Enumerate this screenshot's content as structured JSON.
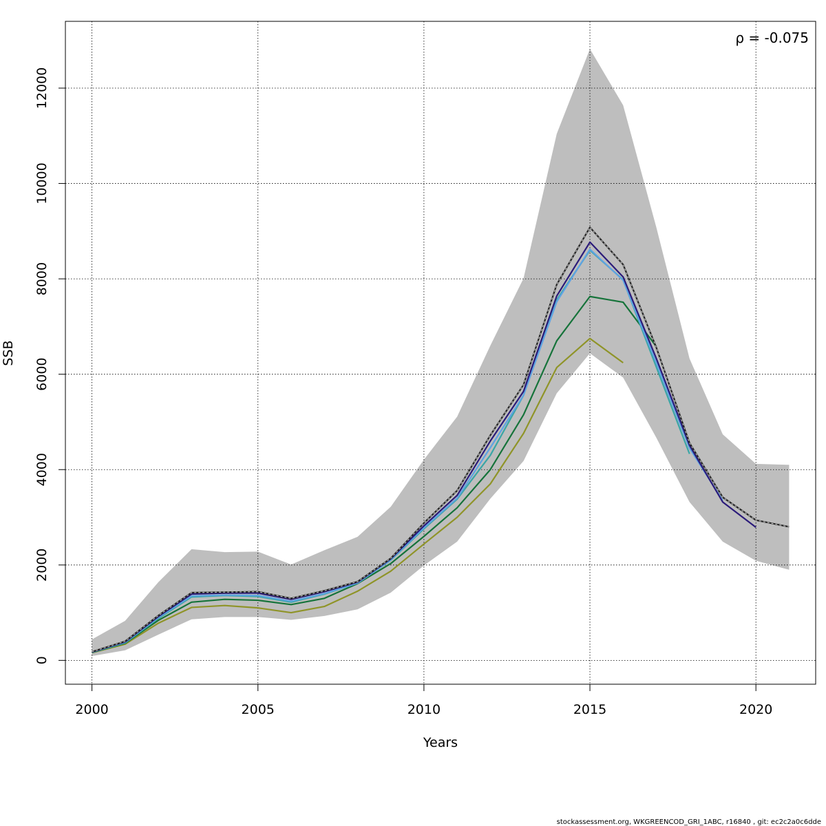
{
  "chart_data": {
    "type": "line",
    "title": "",
    "xlabel": "Years",
    "ylabel": "SSB",
    "xlim": [
      1999.2,
      2021.8
    ],
    "ylim": [
      -500,
      13400
    ],
    "x_ticks": [
      2000,
      2005,
      2010,
      2015,
      2020
    ],
    "y_ticks": [
      0,
      2000,
      4000,
      6000,
      8000,
      10000,
      12000
    ],
    "grid": true,
    "annotation": "ρ = -0.075",
    "footer": "stockassessment.org, WKGREENCOD_GRI_1ABC, r16840 , git: ec2c2a0c6dde",
    "band": {
      "x": [
        2000,
        2001,
        2002,
        2003,
        2004,
        2005,
        2006,
        2007,
        2008,
        2009,
        2010,
        2011,
        2012,
        2013,
        2014,
        2015,
        2016,
        2017,
        2018,
        2019,
        2020,
        2021
      ],
      "upper": [
        440,
        830,
        1640,
        2330,
        2270,
        2280,
        2010,
        2310,
        2590,
        3220,
        4210,
        5110,
        6600,
        8010,
        11040,
        12820,
        11640,
        9080,
        6330,
        4740,
        4120,
        4100
      ],
      "lower": [
        90,
        210,
        540,
        860,
        910,
        910,
        850,
        930,
        1070,
        1420,
        1990,
        2490,
        3390,
        4180,
        5600,
        6440,
        5930,
        4670,
        3320,
        2490,
        2090,
        1900
      ],
      "color": "#bebebe"
    },
    "series": [
      {
        "color": "#222222",
        "dashed_overlay": true,
        "x": [
          2000,
          2001,
          2002,
          2003,
          2004,
          2005,
          2006,
          2007,
          2008,
          2009,
          2010,
          2011,
          2012,
          2013,
          2014,
          2015,
          2016,
          2017,
          2018,
          2019,
          2020,
          2021
        ],
        "y": [
          180,
          400,
          940,
          1420,
          1430,
          1440,
          1300,
          1460,
          1650,
          2140,
          2880,
          3560,
          4720,
          5780,
          7880,
          9080,
          8300,
          6560,
          4560,
          3420,
          2940,
          2800
        ]
      },
      {
        "color": "#2b1b7a",
        "x": [
          2000,
          2001,
          2002,
          2003,
          2004,
          2005,
          2006,
          2007,
          2008,
          2009,
          2010,
          2011,
          2012,
          2013,
          2014,
          2015,
          2016,
          2017,
          2018,
          2019,
          2020
        ],
        "y": [
          175,
          390,
          920,
          1390,
          1410,
          1410,
          1280,
          1440,
          1640,
          2130,
          2820,
          3460,
          4600,
          5640,
          7640,
          8770,
          8040,
          6330,
          4510,
          3320,
          2790
        ]
      },
      {
        "color": "#5ea3e3",
        "x": [
          2000,
          2001,
          2002,
          2003,
          2004,
          2005,
          2006,
          2007,
          2008,
          2009,
          2010,
          2011,
          2012,
          2013,
          2014,
          2015,
          2016,
          2017,
          2018,
          2019
        ],
        "y": [
          170,
          380,
          900,
          1350,
          1370,
          1360,
          1240,
          1400,
          1620,
          2110,
          2780,
          3400,
          4460,
          5560,
          7520,
          8620,
          7970,
          6240,
          4450,
          3350
        ]
      },
      {
        "color": "#3aa6a6",
        "x": [
          2000,
          2001,
          2002,
          2003,
          2004,
          2005,
          2006,
          2007,
          2008,
          2009,
          2010,
          2011,
          2012,
          2013,
          2014,
          2015,
          2016,
          2017,
          2018
        ],
        "y": [
          170,
          370,
          880,
          1330,
          1360,
          1340,
          1220,
          1390,
          1620,
          2100,
          2760,
          3380,
          4300,
          5560,
          7560,
          8600,
          7980,
          6150,
          4330
        ]
      },
      {
        "color": "#16733a",
        "x": [
          2000,
          2001,
          2002,
          2003,
          2004,
          2005,
          2006,
          2007,
          2008,
          2009,
          2010,
          2011,
          2012,
          2013,
          2014,
          2015,
          2016,
          2017
        ],
        "y": [
          165,
          360,
          840,
          1220,
          1280,
          1260,
          1170,
          1300,
          1610,
          2030,
          2600,
          3200,
          4000,
          5150,
          6700,
          7630,
          7510,
          6580
        ]
      },
      {
        "color": "#8f9428",
        "x": [
          2000,
          2001,
          2002,
          2003,
          2004,
          2005,
          2006,
          2007,
          2008,
          2009,
          2010,
          2011,
          2012,
          2013,
          2014,
          2015,
          2016
        ],
        "y": [
          160,
          340,
          780,
          1110,
          1150,
          1100,
          1000,
          1130,
          1450,
          1870,
          2440,
          3000,
          3700,
          4760,
          6140,
          6750,
          6240
        ]
      }
    ]
  }
}
